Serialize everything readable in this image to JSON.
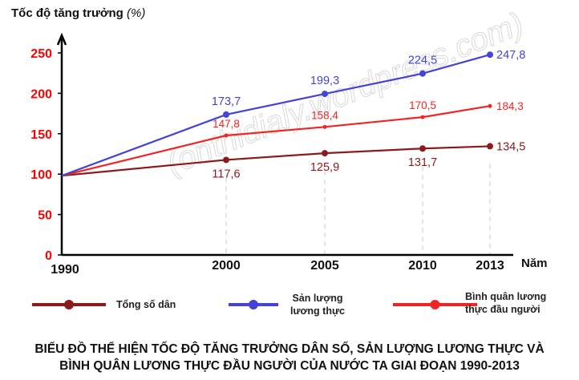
{
  "chart_data": {
    "type": "line",
    "title": "BIỂU ĐỒ THỂ HIỆN TỐC ĐỘ TĂNG TRƯỞNG DÂN SỐ, SẢN LƯỢNG LƯƠNG THỰC VÀ BÌNH QUÂN LƯƠNG THỰC ĐẦU NGƯỜI CỦA NƯỚC TA GIAI ĐOẠN 1990-2013",
    "title_lines": [
      "BIỂU ĐỒ THỂ HIỆN TỐC ĐỘ TĂNG TRƯỞNG DÂN SỐ, SẢN LƯỢNG LƯƠNG THỰC VÀ",
      "BÌNH QUÂN LƯƠNG THỰC ĐẦU NGƯỜI CỦA NƯỚC TA GIAI ĐOẠN 1990-2013"
    ],
    "ylabel": "Tốc độ tăng trưởng",
    "ylabel_unit": "(%)",
    "xlabel": "Năm",
    "x": [
      "1990",
      "2000",
      "2005",
      "2010",
      "2013"
    ],
    "ylim": [
      0,
      250
    ],
    "yticks": [
      "0",
      "50",
      "100",
      "150",
      "200",
      "250"
    ],
    "ytick_color": "#ff0000",
    "grid": false,
    "legend_position": "bottom",
    "watermark": "(onthidialy.wordpress.com)",
    "series": [
      {
        "name": "Tổng số dân",
        "color": "#8b1a1a",
        "values": [
          100,
          117.6,
          125.9,
          131.7,
          134.5
        ],
        "labels": [
          "",
          "117,6",
          "125,9",
          "131,7",
          "134,5"
        ]
      },
      {
        "name": "Sản lượng lương thực",
        "name_lines": [
          "Sản lượng",
          "lương thực"
        ],
        "color": "#4343d6",
        "values": [
          100,
          173.7,
          199.3,
          224.5,
          247.8
        ],
        "labels": [
          "",
          "173,7",
          "199,3",
          "224,5",
          "247,8"
        ]
      },
      {
        "name": "Bình quân lương thực đầu người",
        "name_lines": [
          "Bình quân lương",
          "thực đầu người"
        ],
        "color": "#f02424",
        "values": [
          100,
          147.8,
          158.4,
          170.5,
          184.3
        ],
        "labels": [
          "",
          "147,8",
          "158,4",
          "170,5",
          "184,3"
        ]
      }
    ]
  }
}
